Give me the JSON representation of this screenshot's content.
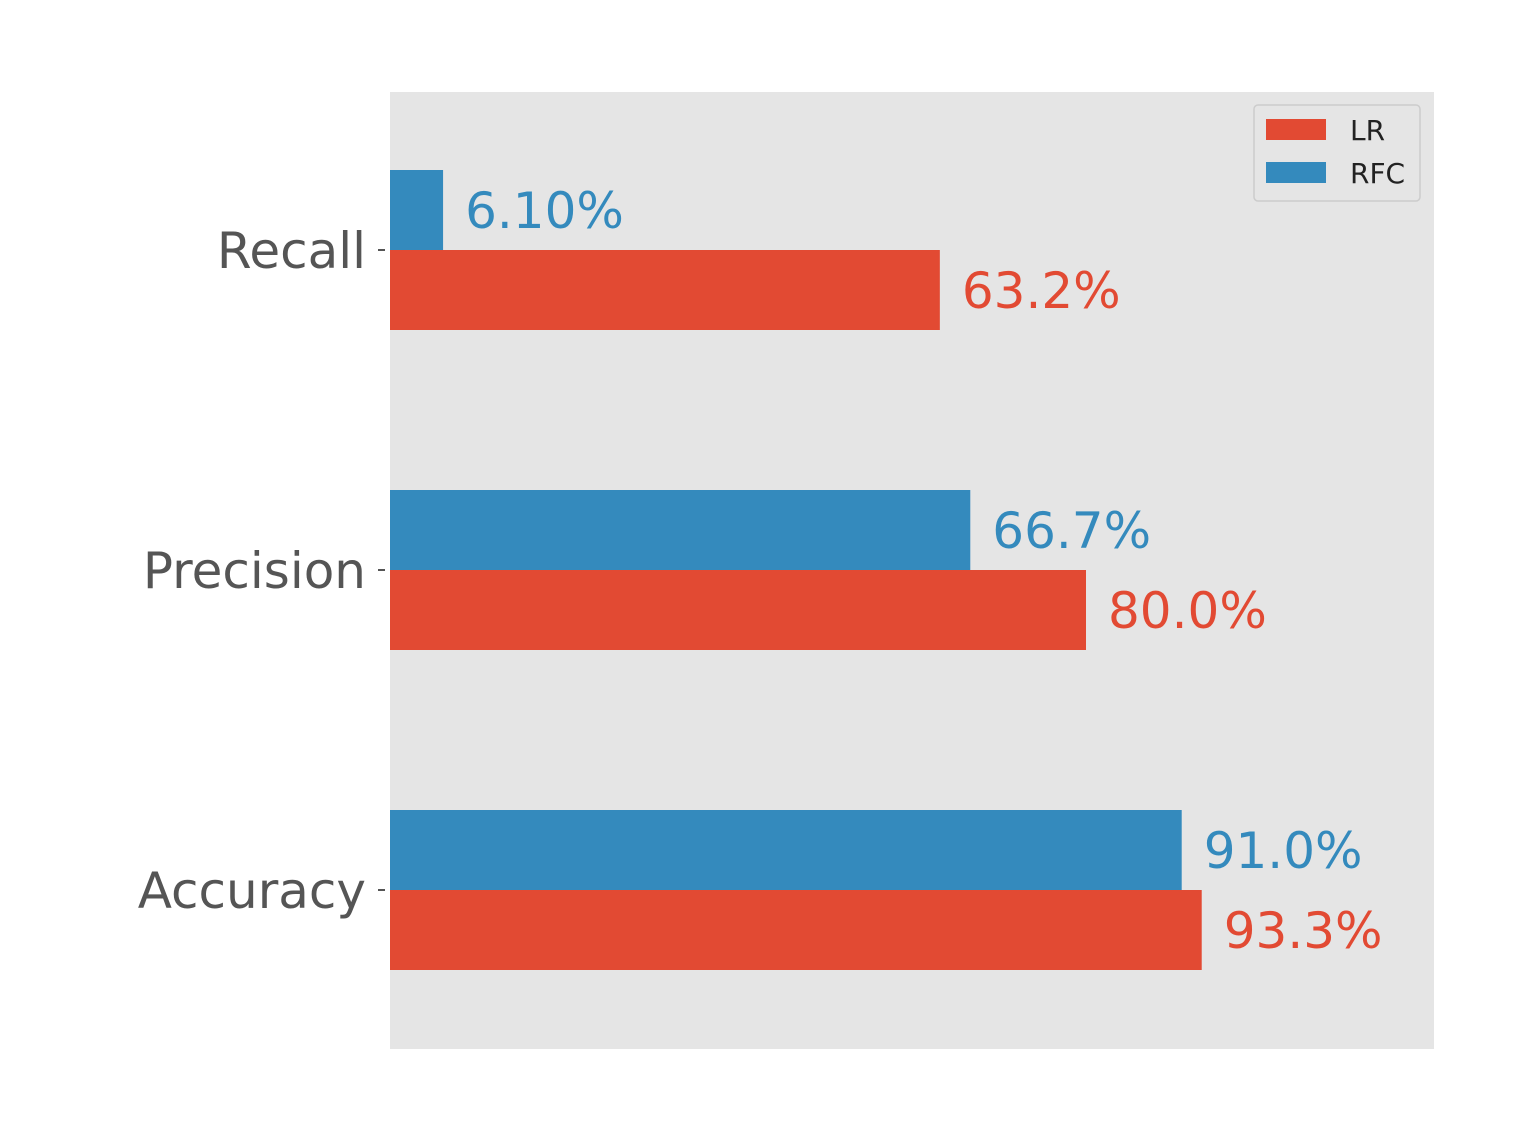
{
  "chart_data": {
    "type": "bar",
    "orientation": "horizontal",
    "categories": [
      "Recall",
      "Precision",
      "Accuracy"
    ],
    "series": [
      {
        "name": "LR",
        "color": "#E24A33",
        "values": [
          63.2,
          80.0,
          93.3
        ],
        "labels": [
          "63.2%",
          "80.0%",
          "93.3%"
        ]
      },
      {
        "name": "RFC",
        "color": "#348ABD",
        "values": [
          6.1,
          66.7,
          91.0
        ],
        "labels": [
          "6.10%",
          "66.7%",
          "91.0%"
        ]
      }
    ],
    "xlim": [
      0,
      120
    ],
    "legend_position": "top-right",
    "background_color": "#E5E5E5",
    "tick_label_color": "#555555",
    "grid": false,
    "xticks_visible": false
  }
}
